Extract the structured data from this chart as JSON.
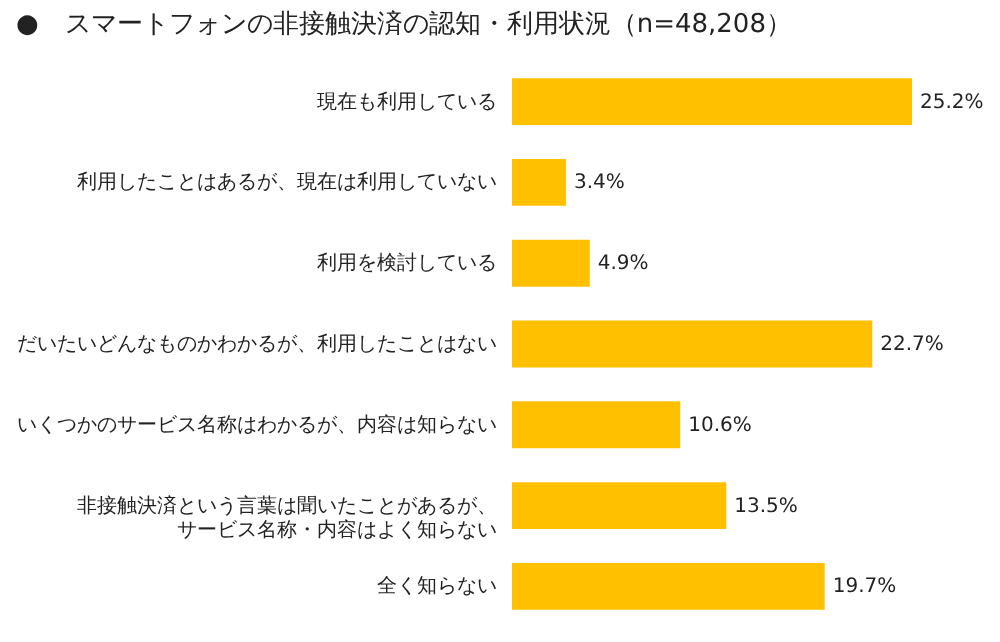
{
  "chart_data": {
    "type": "bar",
    "orientation": "horizontal",
    "title": "●　スマートフォンの非接触決済の認知・利用状況（n=48,208）",
    "categories": [
      "現在も利用している",
      "利用したことはあるが、現在は利用していない",
      "利用を検討している",
      "だいたいどんなものかわかるが、利用したことはない",
      "いくつかのサービス名称はわかるが、内容は知らない",
      "非接触決済という言葉は聞いたことがあるが、サービス名称・内容はよく知らない",
      "全く知らない"
    ],
    "values": [
      25.2,
      3.4,
      4.9,
      22.7,
      10.6,
      13.5,
      19.7
    ],
    "value_labels": [
      "25.2%",
      "3.4%",
      "4.9%",
      "22.7%",
      "10.6%",
      "13.5%",
      "19.7%"
    ],
    "color": "#ffc000"
  }
}
